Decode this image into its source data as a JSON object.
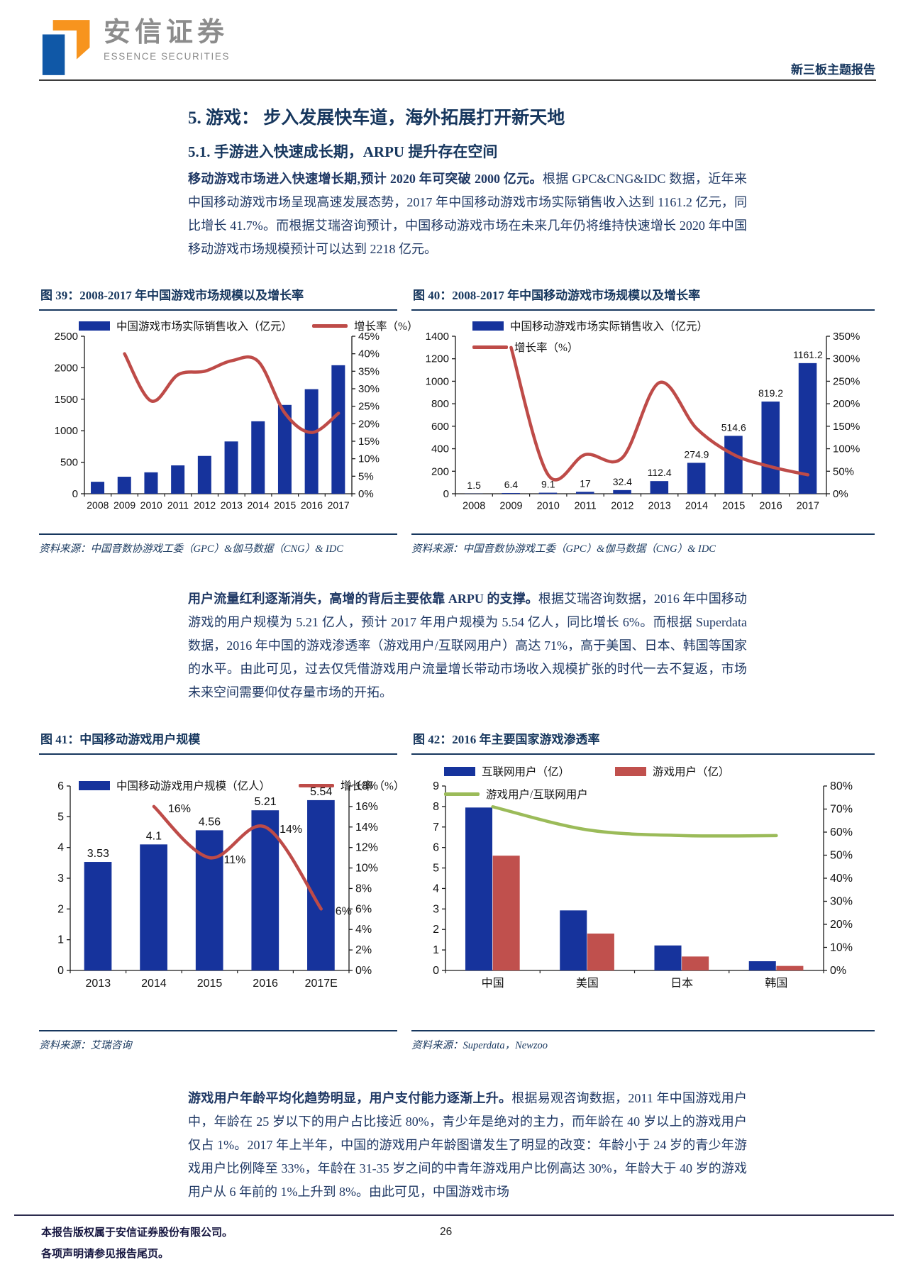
{
  "header": {
    "brand_cn": "安信证券",
    "brand_en": "ESSENCE SECURITIES",
    "report_type": "新三板主题报告"
  },
  "section": {
    "h1": "5. 游戏： 步入发展快车道，海外拓展打开新天地",
    "h2": "5.1. 手游进入快速成长期，ARPU 提升存在空间"
  },
  "paragraphs": {
    "p1_lead": "移动游戏市场进入快速增长期,预计 2020 年可突破 2000 亿元。",
    "p1_body": "根据 GPC&CNG&IDC 数据，近年来中国移动游戏市场呈现高速发展态势，2017 年中国移动游戏市场实际销售收入达到 1161.2 亿元，同比增长 41.7%。而根据艾瑞咨询预计，中国移动游戏市场在未来几年仍将维持快速增长 2020 年中国移动游戏市场规模预计可以达到 2218 亿元。",
    "p2_lead": "用户流量红利逐渐消失，高增的背后主要依靠 ARPU 的支撑。",
    "p2_body": "根据艾瑞咨询数据，2016 年中国移动游戏的用户规模为 5.21 亿人，预计 2017 年用户规模为 5.54 亿人，同比增长 6%。而根据 Superdata 数据，2016 年中国的游戏渗透率（游戏用户/互联网用户）高达 71%，高于美国、日本、韩国等国家的水平。由此可见，过去仅凭借游戏用户流量增长带动市场收入规模扩张的时代一去不复返，市场未来空间需要仰仗存量市场的开拓。",
    "p3_lead": "游戏用户年龄平均化趋势明显，用户支付能力逐渐上升。",
    "p3_body": "根据易观咨询数据，2011 年中国游戏用户中，年龄在 25 岁以下的用户占比接近 80%，青少年是绝对的主力，而年龄在 40 岁以上的游戏用户仅占 1%。2017 年上半年，中国的游戏用户年龄图谱发生了明显的改变：年龄小于 24 岁的青少年游戏用户比例降至 33%，年龄在 31-35 岁之间的中青年游戏用户比例高达 30%，年龄大于 40 岁的游戏用户从 6 年前的 1%上升到 8%。由此可见，中国游戏市场"
  },
  "colors": {
    "bar_blue": "#16339C",
    "bar_red": "#C0504D",
    "line_red": "#BE4B48",
    "line_green": "#9BBB59",
    "navy": "#17375E"
  },
  "chart_data": [
    {
      "id": "fig39",
      "type": "bar",
      "title": "图 39：2008-2017 年中国游戏市场规模以及增长率",
      "source": "资料来源：中国音数协游戏工委（GPC）&伽马数据（CNG）& IDC",
      "categories": [
        "2008",
        "2009",
        "2010",
        "2011",
        "2012",
        "2013",
        "2014",
        "2015",
        "2016",
        "2017"
      ],
      "series": [
        {
          "name": "中国游戏市场实际销售收入（亿元）",
          "color": "bar_blue",
          "values": [
            190,
            270,
            340,
            450,
            600,
            830,
            1150,
            1410,
            1660,
            2040
          ]
        }
      ],
      "line": {
        "name": "增长率（%）",
        "color": "line_red",
        "values": [
          null,
          40,
          26.5,
          34,
          35,
          38,
          37.8,
          23,
          17.5,
          23
        ]
      },
      "left_axis": {
        "min": 0,
        "max": 2500,
        "step": 500
      },
      "right_axis": {
        "min": 0,
        "max": 45,
        "step": 5,
        "suffix": "%"
      },
      "legend": [
        [
          {
            "sw": "bar",
            "color": "bar_blue",
            "label": "中国游戏市场实际销售收入（亿元）"
          },
          {
            "sw": "line",
            "color": "line_red",
            "label": "增长率（%）"
          }
        ]
      ]
    },
    {
      "id": "fig40",
      "type": "bar",
      "title": "图 40：2008-2017 年中国移动游戏市场规模以及增长率",
      "source": "资料来源：中国音数协游戏工委（GPC）&伽马数据（CNG）& IDC",
      "categories": [
        "2008",
        "2009",
        "2010",
        "2011",
        "2012",
        "2013",
        "2014",
        "2015",
        "2016",
        "2017"
      ],
      "series": [
        {
          "name": "中国移动游戏市场实际销售收入（亿元）",
          "color": "bar_blue",
          "values": [
            1.5,
            6.4,
            9.1,
            17,
            32.4,
            112.4,
            274.9,
            514.6,
            819.2,
            1161.2
          ],
          "labels": [
            "1.5",
            "6.4",
            "9.1",
            "17",
            "32.4",
            "112.4",
            "274.9",
            "514.6",
            "819.2",
            "1161.2"
          ]
        }
      ],
      "line": {
        "name": "增长率（%）",
        "color": "line_red",
        "values": [
          null,
          325,
          42,
          87,
          80,
          247,
          145,
          87,
          60,
          42
        ]
      },
      "left_axis": {
        "min": 0,
        "max": 1400,
        "step": 200
      },
      "right_axis": {
        "min": 0,
        "max": 350,
        "step": 50,
        "suffix": "%"
      },
      "legend": [
        [
          {
            "sw": "bar",
            "color": "bar_blue",
            "label": "中国移动游戏市场实际销售收入（亿元）"
          }
        ],
        [
          {
            "sw": "line",
            "color": "line_red",
            "label": "增长率（%）"
          }
        ]
      ]
    },
    {
      "id": "fig41",
      "type": "bar",
      "title": "图 41：中国移动游戏用户规模",
      "source": "资料来源：艾瑞咨询",
      "categories": [
        "2013",
        "2014",
        "2015",
        "2016",
        "2017E"
      ],
      "series": [
        {
          "name": "中国移动游戏用户规模（亿人）",
          "color": "bar_blue",
          "values": [
            3.53,
            4.1,
            4.56,
            5.21,
            5.54
          ],
          "labels": [
            "3.53",
            "4.1",
            "4.56",
            "5.21",
            "5.54"
          ]
        }
      ],
      "line": {
        "name": "增长率（%）",
        "color": "line_red",
        "values": [
          null,
          16,
          11,
          14,
          6
        ],
        "labels": [
          "",
          "16%",
          "11%",
          "14%",
          "6%"
        ]
      },
      "left_axis": {
        "min": 0,
        "max": 6,
        "step": 1
      },
      "right_axis": {
        "min": 0,
        "max": 18,
        "step": 2,
        "suffix": "%"
      },
      "legend": [
        [
          {
            "sw": "bar",
            "color": "bar_blue",
            "label": "中国移动游戏用户规模（亿人）"
          },
          {
            "sw": "line",
            "color": "line_red",
            "label": "增长率（%）"
          }
        ]
      ]
    },
    {
      "id": "fig42",
      "type": "bar",
      "title": "图 42：2016 年主要国家游戏渗透率",
      "source": "资料来源：Superdata，Newzoo",
      "categories": [
        "中国",
        "美国",
        "日本",
        "韩国"
      ],
      "series": [
        {
          "name": "互联网用户（亿）",
          "color": "bar_blue",
          "values": [
            7.95,
            2.93,
            1.22,
            0.45
          ]
        },
        {
          "name": "游戏用户（亿）",
          "color": "bar_red",
          "values": [
            5.6,
            1.8,
            0.68,
            0.22
          ]
        }
      ],
      "line": {
        "name": "游戏用户/互联网用户",
        "color": "line_green",
        "values": [
          71,
          61,
          58.5,
          58.5
        ]
      },
      "left_axis": {
        "min": 0,
        "max": 9,
        "step": 1
      },
      "right_axis": {
        "min": 0,
        "max": 80,
        "step": 10,
        "suffix": "%"
      },
      "legend": [
        [
          {
            "sw": "bar",
            "color": "bar_blue",
            "label": "互联网用户（亿）"
          },
          {
            "sw": "bar",
            "color": "bar_red",
            "label": "游戏用户（亿）"
          }
        ],
        [
          {
            "sw": "line",
            "color": "line_green",
            "label": "游戏用户/互联网用户"
          }
        ]
      ]
    }
  ],
  "footer": {
    "line1": "本报告版权属于安信证券股份有限公司。",
    "line2": "各项声明请参见报告尾页。"
  },
  "page": {
    "number": "26"
  }
}
